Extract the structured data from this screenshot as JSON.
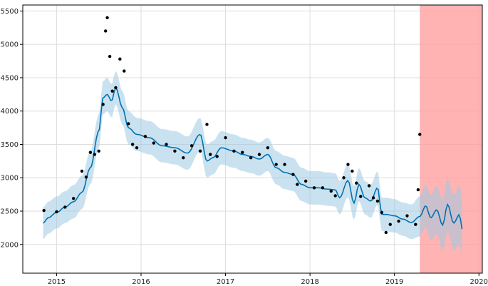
{
  "chart_data": {
    "type": "line",
    "title": "",
    "xlabel": "",
    "ylabel": "",
    "xlim": [
      2014.6,
      2020.04
    ],
    "ylim": [
      1570,
      5590
    ],
    "x_ticks": [
      2015,
      2016,
      2017,
      2018,
      2019,
      2020
    ],
    "x_tick_labels": [
      "2015",
      "2016",
      "2017",
      "2018",
      "2019",
      "2020"
    ],
    "y_ticks": [
      2000,
      2500,
      3000,
      3500,
      4000,
      4500,
      5000,
      5500
    ],
    "y_tick_labels": [
      "2000",
      "2500",
      "3000",
      "3500",
      "4000",
      "4500",
      "5000",
      "5500"
    ],
    "grid": true,
    "legend": "none",
    "forecast_region": {
      "x_start": 2019.3,
      "x_end": 2020.04,
      "color": "#ff9999"
    },
    "colors": {
      "forecast_line": "#0072b2",
      "interval": "#9ecae1",
      "observed": "#000000"
    },
    "forecast_line": {
      "x": [
        2014.84,
        2014.9,
        2015.0,
        2015.1,
        2015.2,
        2015.3,
        2015.4,
        2015.5,
        2015.55,
        2015.6,
        2015.65,
        2015.7,
        2015.78,
        2015.85,
        2015.95,
        2016.1,
        2016.25,
        2016.4,
        2016.55,
        2016.7,
        2016.78,
        2016.85,
        2016.95,
        2017.1,
        2017.2,
        2017.3,
        2017.4,
        2017.5,
        2017.6,
        2017.7,
        2017.8,
        2017.9,
        2018.0,
        2018.1,
        2018.2,
        2018.3,
        2018.35,
        2018.45,
        2018.52,
        2018.58,
        2018.65,
        2018.72,
        2018.8,
        2018.85,
        2018.9,
        2019.0,
        2019.1,
        2019.2,
        2019.3,
        2019.37,
        2019.43,
        2019.5,
        2019.57,
        2019.63,
        2019.7,
        2019.77,
        2019.8
      ],
      "y": [
        2320,
        2400,
        2480,
        2560,
        2640,
        2780,
        3150,
        3700,
        4200,
        4250,
        4150,
        4350,
        4050,
        3750,
        3650,
        3600,
        3480,
        3450,
        3370,
        3650,
        3250,
        3300,
        3450,
        3400,
        3350,
        3320,
        3280,
        3350,
        3150,
        3080,
        3050,
        2900,
        2850,
        2850,
        2830,
        2820,
        2700,
        2960,
        2620,
        2900,
        2700,
        2650,
        2850,
        2450,
        2450,
        2430,
        2380,
        2330,
        2420,
        2580,
        2400,
        2520,
        2290,
        2600,
        2320,
        2450,
        2230
      ]
    },
    "interval_upper": [
      2560,
      2640,
      2720,
      2800,
      2890,
      3030,
      3400,
      3950,
      4450,
      4500,
      4400,
      4600,
      4300,
      4000,
      3900,
      3850,
      3730,
      3700,
      3620,
      3900,
      3500,
      3550,
      3700,
      3650,
      3600,
      3570,
      3530,
      3600,
      3400,
      3330,
      3300,
      3150,
      3100,
      3100,
      3080,
      3070,
      2950,
      3210,
      2870,
      3150,
      2950,
      2900,
      3100,
      2700,
      2700,
      2680,
      2630,
      2600,
      2720,
      2900,
      2740,
      2880,
      2680,
      3000,
      2740,
      2890,
      2700
    ],
    "interval_lower": [
      2080,
      2160,
      2240,
      2320,
      2390,
      2530,
      2900,
      3450,
      3950,
      4000,
      3900,
      4100,
      3800,
      3500,
      3400,
      3350,
      3230,
      3200,
      3120,
      3400,
      3000,
      3050,
      3200,
      3150,
      3100,
      3070,
      3030,
      3100,
      2900,
      2830,
      2800,
      2650,
      2600,
      2600,
      2580,
      2570,
      2450,
      2710,
      2370,
      2650,
      2450,
      2400,
      2600,
      2200,
      2200,
      2180,
      2130,
      2080,
      2120,
      2260,
      2060,
      2160,
      1900,
      2200,
      1900,
      2010,
      1770
    ],
    "observed_series": [
      {
        "x": [
          2014.85,
          2015.0,
          2015.1,
          2015.2,
          2015.3,
          2015.35,
          2015.4,
          2015.45,
          2015.5,
          2015.55,
          2015.58,
          2015.6,
          2015.63,
          2015.66,
          2015.7,
          2015.75,
          2015.8,
          2015.85,
          2015.9
        ],
        "y": [
          2510,
          2490,
          2560,
          2690,
          3100,
          3010,
          3380,
          3350,
          3400,
          4100,
          5200,
          5400,
          4820,
          4300,
          4350,
          4780,
          4600,
          3810,
          3500
        ]
      },
      {
        "x": [
          2015.95,
          2016.05,
          2016.15,
          2016.3,
          2016.4,
          2016.5,
          2016.6,
          2016.7,
          2016.78,
          2016.82,
          2016.9,
          2017.0,
          2017.1,
          2017.2,
          2017.3,
          2017.4,
          2017.5,
          2017.6,
          2017.7,
          2017.8
        ],
        "y": [
          3450,
          3620,
          3520,
          3500,
          3400,
          3300,
          3480,
          3400,
          3800,
          3350,
          3320,
          3600,
          3400,
          3380,
          3300,
          3350,
          3450,
          3200,
          3200,
          3050
        ]
      },
      {
        "x": [
          2017.85,
          2017.95,
          2018.05,
          2018.15,
          2018.25,
          2018.3,
          2018.4,
          2018.45,
          2018.5,
          2018.55,
          2018.6,
          2018.7,
          2018.75,
          2018.8,
          2018.85,
          2018.9,
          2018.95,
          2019.05,
          2019.15,
          2019.25,
          2019.28,
          2019.3
        ],
        "y": [
          2900,
          2950,
          2850,
          2850,
          2800,
          2730,
          3000,
          3200,
          3100,
          2920,
          2720,
          2880,
          2700,
          2650,
          2480,
          2180,
          2300,
          2350,
          2430,
          2300,
          2820,
          3650
        ]
      }
    ]
  }
}
